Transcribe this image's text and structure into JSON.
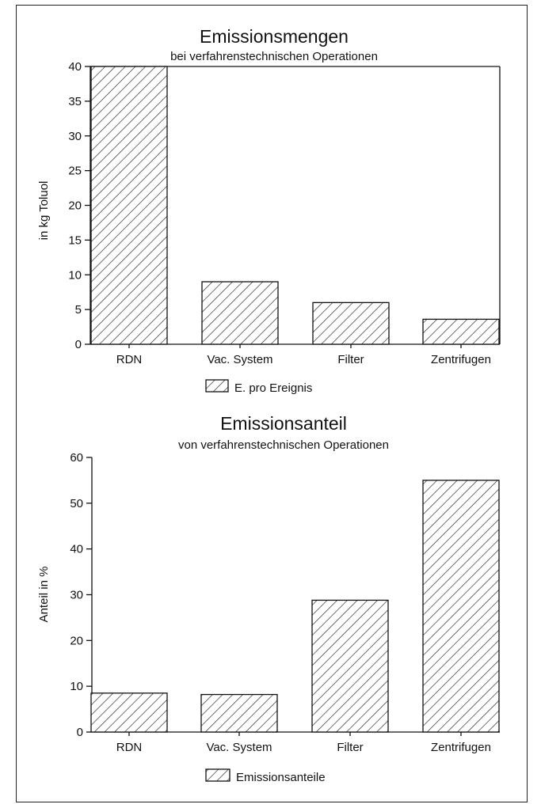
{
  "chart_data": [
    {
      "type": "bar",
      "title": "Emissionsmengen",
      "subtitle": "bei verfahrenstechnischen Operationen",
      "xlabel": "",
      "ylabel": "in kg Toluol",
      "ylim": [
        0,
        40
      ],
      "yticks": [
        0,
        5,
        10,
        15,
        20,
        25,
        30,
        35,
        40
      ],
      "categories": [
        "RDN",
        "Vac. System",
        "Filter",
        "Zentrifugen"
      ],
      "series": [
        {
          "name": "E. pro Ereignis",
          "values": [
            40,
            9,
            6,
            3.6
          ]
        }
      ],
      "grid": false,
      "legend": "bottom-center"
    },
    {
      "type": "bar",
      "title": "Emissionsanteil",
      "subtitle": "von verfahrenstechnischen Operationen",
      "xlabel": "",
      "ylabel": "Anteil in %",
      "ylim": [
        0,
        60
      ],
      "yticks": [
        0,
        10,
        20,
        30,
        40,
        50,
        60
      ],
      "categories": [
        "RDN",
        "Vac. System",
        "Filter",
        "Zentrifugen"
      ],
      "series": [
        {
          "name": "Emissionsanteile",
          "values": [
            8.5,
            8.2,
            28.8,
            55
          ]
        }
      ],
      "grid": false,
      "legend": "bottom-center"
    }
  ]
}
